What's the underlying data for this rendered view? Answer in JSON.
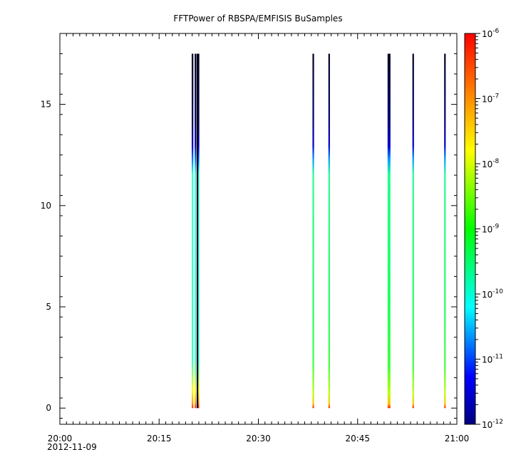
{
  "chart_data": {
    "type": "heatmap",
    "title": "FFTPower of RBSPA/EMFISIS  BuSamples",
    "xlabel": "",
    "ylabel": "",
    "x_axis": {
      "range": [
        "20:00",
        "21:00"
      ],
      "ticks": [
        "20:00",
        "20:15",
        "20:30",
        "20:45",
        "21:00"
      ],
      "date_label": "2012-11-09"
    },
    "y_axis": {
      "range": [
        -0.8,
        18.5
      ],
      "ticks": [
        0,
        5,
        10,
        15
      ]
    },
    "colorbar": {
      "scale": "log",
      "range": [
        1e-12,
        1e-06
      ],
      "ticks": [
        {
          "base": "10",
          "exp": "-12",
          "value": 1e-12
        },
        {
          "base": "10",
          "exp": "-11",
          "value": 1e-11
        },
        {
          "base": "10",
          "exp": "-10",
          "value": 1e-10
        },
        {
          "base": "10",
          "exp": "-9",
          "value": 1e-09
        },
        {
          "base": "10",
          "exp": "-8",
          "value": 1e-08
        },
        {
          "base": "10",
          "exp": "-7",
          "value": 1e-07
        },
        {
          "base": "10",
          "exp": "-6",
          "value": 1e-06
        }
      ]
    },
    "freq_top": 17.5,
    "bursts": [
      {
        "time_min": 20.05,
        "width_min": 0.25,
        "profile": "cyan"
      },
      {
        "time_min": 20.5,
        "width_min": 0.25,
        "profile": "cyan"
      },
      {
        "time_min": 20.95,
        "width_min": 0.25,
        "profile": "cyan"
      },
      {
        "time_min": 20.8,
        "width_min": 0.1,
        "profile": "dark"
      },
      {
        "time_min": 38.3,
        "width_min": 0.2,
        "profile": "green"
      },
      {
        "time_min": 40.7,
        "width_min": 0.2,
        "profile": "green"
      },
      {
        "time_min": 49.65,
        "width_min": 0.2,
        "profile": "green"
      },
      {
        "time_min": 49.85,
        "width_min": 0.2,
        "profile": "green"
      },
      {
        "time_min": 53.4,
        "width_min": 0.2,
        "profile": "green"
      },
      {
        "time_min": 58.2,
        "width_min": 0.2,
        "profile": "green"
      }
    ]
  }
}
